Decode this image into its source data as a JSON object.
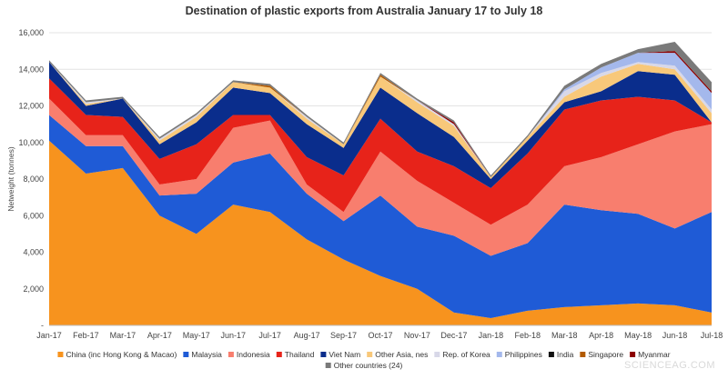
{
  "chart_data": {
    "type": "area",
    "stacked": true,
    "title": "Destination of plastic exports from Australia January 17 to July 18",
    "ylabel": "Netweight (tonnes)",
    "xlabel": "",
    "ylim": [
      0,
      16000
    ],
    "yticks": [
      0,
      2000,
      4000,
      6000,
      8000,
      10000,
      12000,
      14000,
      16000
    ],
    "ytick_labels": [
      "-",
      "2,000",
      "4,000",
      "6,000",
      "8,000",
      "10,000",
      "12,000",
      "14,000",
      "16,000"
    ],
    "grid": true,
    "legend_position": "bottom",
    "categories": [
      "Jan-17",
      "Feb-17",
      "Mar-17",
      "Apr-17",
      "May-17",
      "Jun-17",
      "Jul-17",
      "Aug-17",
      "Sep-17",
      "Oct-17",
      "Nov-17",
      "Dec-17",
      "Jan-18",
      "Feb-18",
      "Mar-18",
      "Apr-18",
      "May-18",
      "Jun-18",
      "Jul-18"
    ],
    "series": [
      {
        "name": "China (inc Hong Kong & Macao)",
        "color": "#f7931e",
        "values": [
          10100,
          8300,
          8600,
          6000,
          5000,
          6600,
          6200,
          4700,
          3600,
          2700,
          2000,
          700,
          400,
          800,
          1000,
          1100,
          1200,
          1100,
          700
        ]
      },
      {
        "name": "Malaysia",
        "color": "#1f5bd6",
        "values": [
          1400,
          1500,
          1200,
          1100,
          2200,
          2300,
          3200,
          2500,
          2100,
          4400,
          3400,
          4200,
          3400,
          3700,
          5600,
          5200,
          4900,
          4200,
          5500
        ]
      },
      {
        "name": "Indonesia",
        "color": "#f87e6e",
        "values": [
          900,
          600,
          600,
          600,
          800,
          1900,
          1800,
          500,
          500,
          2400,
          2500,
          1800,
          1700,
          2100,
          2100,
          2900,
          3800,
          5300,
          4800
        ]
      },
      {
        "name": "Thailand",
        "color": "#e7231a",
        "values": [
          1100,
          1100,
          1000,
          1400,
          1900,
          700,
          300,
          1500,
          2000,
          1800,
          1600,
          2000,
          2000,
          2800,
          3100,
          3100,
          2600,
          1700,
          100
        ]
      },
      {
        "name": "Viet Nam",
        "color": "#0a2d8c",
        "values": [
          900,
          500,
          1000,
          800,
          1200,
          1500,
          1200,
          1800,
          1500,
          1700,
          2100,
          1600,
          500,
          700,
          400,
          500,
          1400,
          1400,
          0
        ]
      },
      {
        "name": "Other Asia, nes",
        "color": "#f8c87a",
        "values": [
          0,
          100,
          0,
          200,
          300,
          300,
          300,
          300,
          200,
          600,
          600,
          600,
          100,
          200,
          300,
          800,
          400,
          300,
          500
        ]
      },
      {
        "name": "Rep. of Korea",
        "color": "#d8d8e8",
        "values": [
          0,
          100,
          0,
          100,
          100,
          0,
          0,
          100,
          0,
          0,
          100,
          100,
          0,
          0,
          300,
          200,
          100,
          200,
          200
        ]
      },
      {
        "name": "Philippines",
        "color": "#a4b8ec",
        "values": [
          0,
          0,
          0,
          0,
          0,
          0,
          0,
          0,
          0,
          0,
          0,
          0,
          0,
          0,
          100,
          300,
          500,
          700,
          900
        ]
      },
      {
        "name": "India",
        "color": "#111111",
        "values": [
          0,
          0,
          0,
          0,
          0,
          0,
          0,
          0,
          0,
          0,
          0,
          0,
          0,
          0,
          0,
          0,
          0,
          0,
          0
        ]
      },
      {
        "name": "Singapore",
        "color": "#b25a00",
        "values": [
          0,
          0,
          0,
          0,
          0,
          0,
          100,
          0,
          0,
          100,
          0,
          0,
          0,
          0,
          0,
          0,
          0,
          0,
          0
        ]
      },
      {
        "name": "Myanmar",
        "color": "#8b0000",
        "values": [
          0,
          0,
          0,
          0,
          0,
          0,
          0,
          0,
          0,
          0,
          0,
          100,
          0,
          0,
          0,
          0,
          0,
          100,
          100
        ]
      },
      {
        "name": "Other countries (24)",
        "color": "#7a7a7a",
        "values": [
          100,
          100,
          100,
          100,
          100,
          100,
          100,
          100,
          100,
          100,
          100,
          100,
          100,
          100,
          200,
          200,
          200,
          500,
          500
        ]
      }
    ]
  },
  "watermark": "SCIENCEAG.COM"
}
